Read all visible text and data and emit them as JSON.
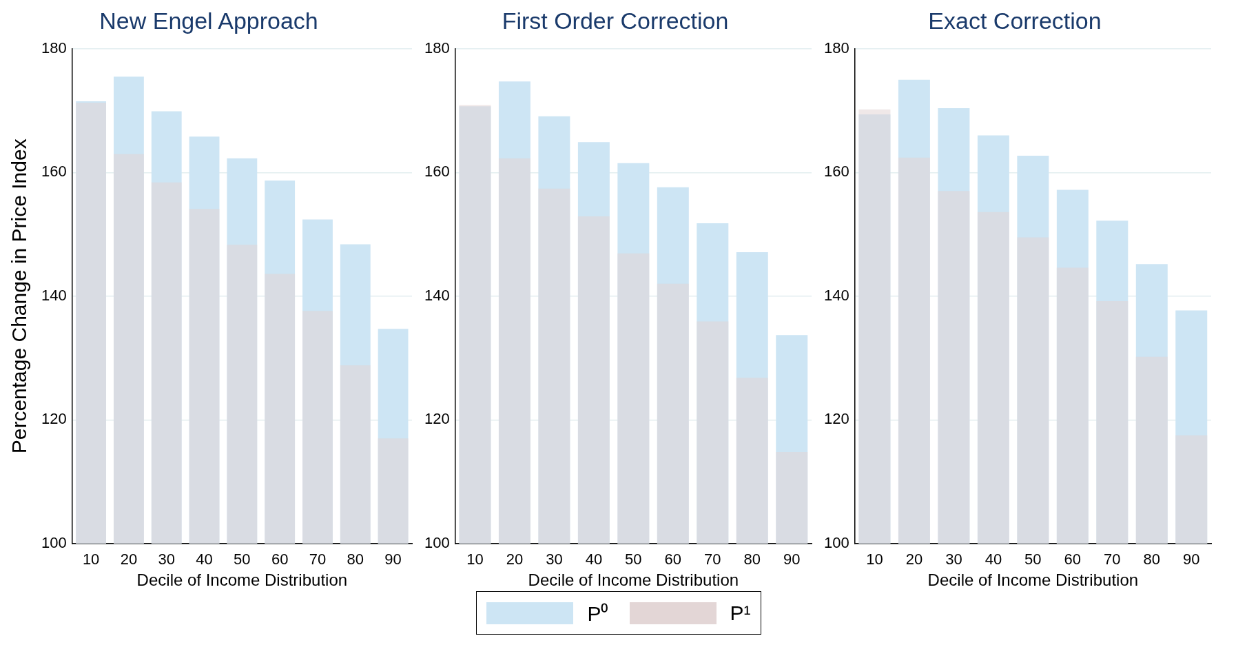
{
  "chart_data": [
    {
      "type": "bar",
      "title": "New Engel Approach",
      "xlabel": "Decile of Income Distribution",
      "ylabel": "Percentage Change in Price Index",
      "categories": [
        "10",
        "20",
        "30",
        "40",
        "50",
        "60",
        "70",
        "80",
        "90"
      ],
      "ylim": [
        100,
        180
      ],
      "yticks": [
        100,
        120,
        140,
        160,
        180
      ],
      "grid": "y",
      "series": [
        {
          "color": "#cde5f4",
          "values": [
            171.5,
            175.5,
            169.9,
            165.8,
            162.3,
            158.7,
            152.4,
            148.4,
            134.7
          ]
        },
        {
          "color": "#e3d6d6",
          "values": [
            171.3,
            163.0,
            158.4,
            154.1,
            148.3,
            143.6,
            137.6,
            128.8,
            117.0
          ]
        }
      ]
    },
    {
      "type": "bar",
      "title": "First Order Correction",
      "xlabel": "Decile of Income Distribution",
      "categories": [
        "10",
        "20",
        "30",
        "40",
        "50",
        "60",
        "70",
        "80",
        "90"
      ],
      "ylim": [
        100,
        180
      ],
      "yticks": [
        100,
        120,
        140,
        160,
        180
      ],
      "grid": "y",
      "legend": "bottom",
      "series": [
        {
          "name": "P⁰",
          "color": "#cde5f4",
          "values": [
            170.7,
            174.7,
            169.1,
            164.9,
            161.5,
            157.6,
            151.8,
            147.1,
            133.7
          ]
        },
        {
          "name": "P¹",
          "color": "#e3d6d6",
          "values": [
            170.9,
            162.3,
            157.4,
            152.9,
            146.9,
            142.0,
            135.9,
            126.8,
            114.8
          ]
        }
      ]
    },
    {
      "type": "bar",
      "title": "Exact Correction",
      "xlabel": "Decile of Income Distribution",
      "categories": [
        "10",
        "20",
        "30",
        "40",
        "50",
        "60",
        "70",
        "80",
        "90"
      ],
      "ylim": [
        100,
        180
      ],
      "yticks": [
        100,
        120,
        140,
        160,
        180
      ],
      "grid": "y",
      "series": [
        {
          "color": "#cde5f4",
          "values": [
            169.4,
            175.0,
            170.4,
            166.0,
            162.7,
            157.2,
            152.2,
            145.2,
            137.7
          ]
        },
        {
          "color": "#e3d6d6",
          "values": [
            170.2,
            162.4,
            157.0,
            153.6,
            149.5,
            144.6,
            139.2,
            130.2,
            117.5
          ]
        }
      ]
    }
  ]
}
